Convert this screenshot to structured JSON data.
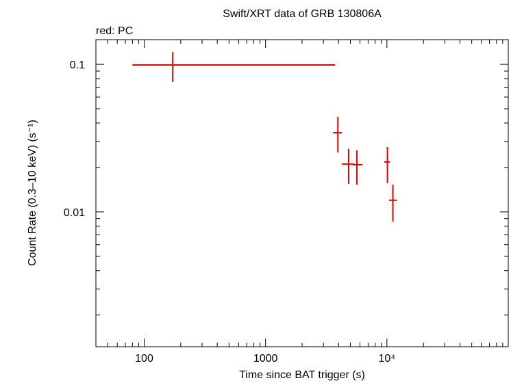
{
  "chart_data": {
    "type": "errorbar-scatter",
    "title": "Swift/XRT data of GRB 130806A",
    "annotation": "red: PC",
    "x_label": "Time since BAT trigger (s)",
    "y_label": "Count Rate (0.3–10 keV) (s⁻¹)",
    "log_x": true,
    "log_y": true,
    "xlim": [
      40,
      100000
    ],
    "ylim": [
      0.00122,
      0.147
    ],
    "xticks": [
      100,
      1000,
      {
        "value": 10000,
        "label": "10⁴"
      }
    ],
    "yticks": [
      0.01,
      0.1
    ],
    "xminorticks": [
      50,
      60,
      70,
      80,
      90,
      200,
      300,
      400,
      500,
      600,
      700,
      800,
      900,
      2000,
      3000,
      4000,
      5000,
      6000,
      7000,
      8000,
      9000,
      20000,
      30000,
      40000,
      50000,
      60000,
      70000,
      80000,
      90000
    ],
    "yminorticks": [
      0.002,
      0.003,
      0.004,
      0.005,
      0.006,
      0.007,
      0.008,
      0.009,
      0.02,
      0.03,
      0.04,
      0.05,
      0.06,
      0.07,
      0.08,
      0.09
    ],
    "series": [
      {
        "name": "PC",
        "color": "#e00000",
        "x": [
          172,
          3945,
          4840,
          5660,
          10100,
          11200
        ],
        "xmin": [
          80,
          3600,
          4260,
          5230,
          9500,
          10400
        ],
        "xmax": [
          3740,
          4260,
          5370,
          6290,
          10600,
          12100
        ],
        "values": [
          0.099,
          0.0344,
          0.0211,
          0.0209,
          0.0218,
          0.012
        ],
        "ylow": [
          0.0758,
          0.0253,
          0.0155,
          0.0153,
          0.0157,
          0.0086
        ],
        "yhigh": [
          0.121,
          0.044,
          0.0267,
          0.0261,
          0.0275,
          0.0153
        ]
      }
    ]
  }
}
